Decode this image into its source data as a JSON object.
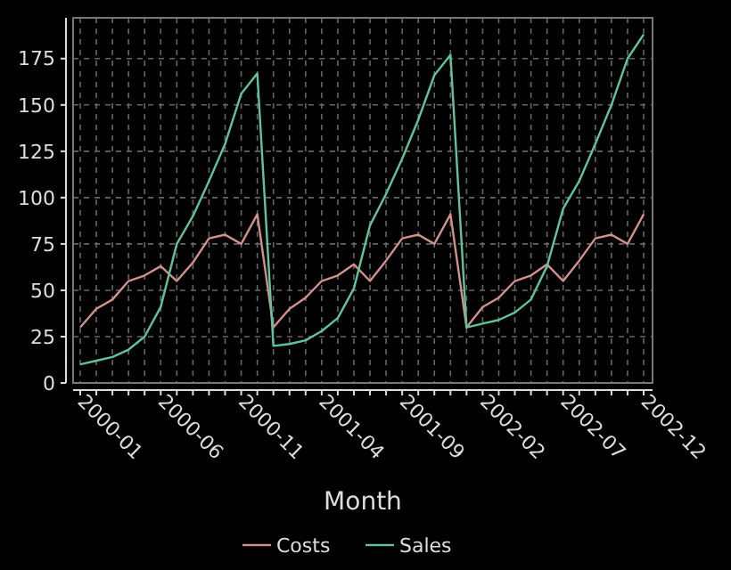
{
  "chart_data": {
    "type": "line",
    "xlabel": "Month",
    "categories": [
      "2000-01",
      null,
      null,
      null,
      null,
      "2000-06",
      null,
      null,
      null,
      null,
      "2000-11",
      null,
      null,
      null,
      null,
      "2001-04",
      null,
      null,
      null,
      null,
      "2001-09",
      null,
      null,
      null,
      null,
      "2002-02",
      null,
      null,
      null,
      null,
      "2002-07",
      null,
      null,
      null,
      null,
      "2002-12"
    ],
    "series": [
      {
        "name": "Costs",
        "color": "#d4908a",
        "values": [
          30,
          40,
          45,
          55,
          58,
          63,
          55,
          65,
          78,
          80,
          75,
          91,
          30,
          40,
          46,
          55,
          58,
          64,
          55,
          66,
          78,
          80,
          75,
          91,
          30,
          41,
          46,
          55,
          58,
          64,
          55,
          66,
          78,
          80,
          75,
          91
        ]
      },
      {
        "name": "Sales",
        "color": "#5fc49a",
        "values": [
          10,
          12,
          14,
          18,
          25,
          41,
          75,
          90,
          109,
          129,
          156,
          167,
          20,
          21,
          23,
          28,
          35,
          51,
          85,
          102,
          121,
          142,
          166,
          177,
          30,
          32,
          34,
          38,
          45,
          63,
          94,
          109,
          129,
          150,
          175,
          188
        ]
      }
    ],
    "ylim": [
      0,
      197
    ],
    "yticks": [
      0,
      25,
      50,
      75,
      100,
      125,
      150,
      175
    ],
    "grid": true,
    "legend": "bottom",
    "line_style": "solid",
    "marker": "none"
  }
}
